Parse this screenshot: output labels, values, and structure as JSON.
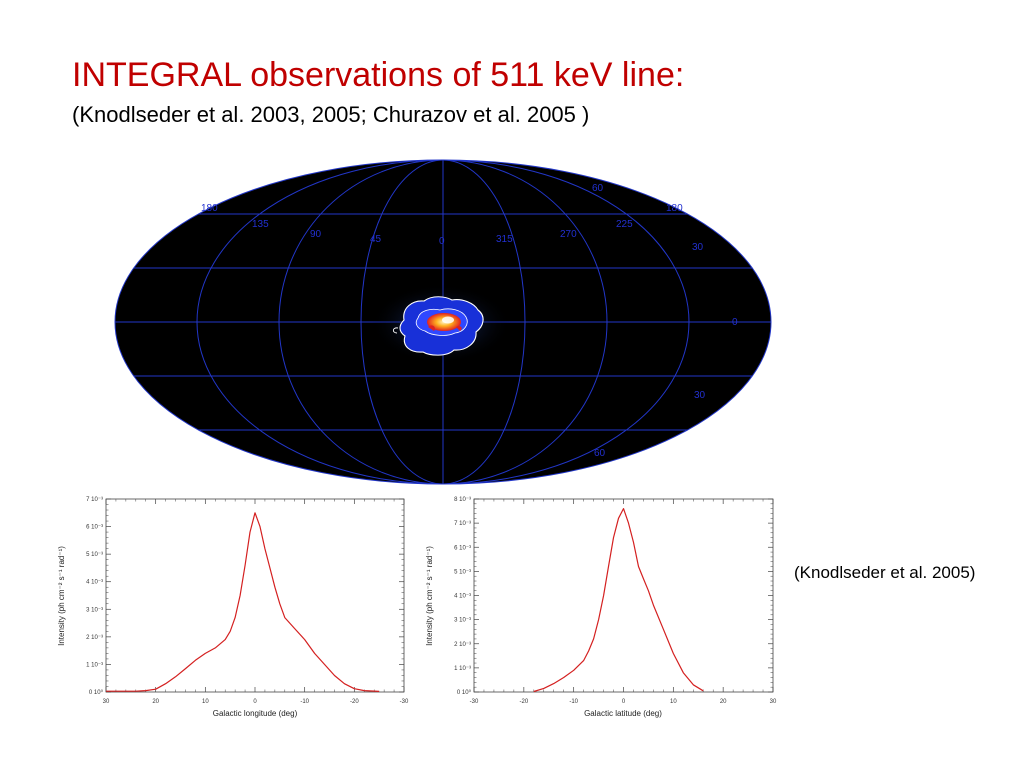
{
  "slide": {
    "title": "INTEGRAL observations of 511 keV line:",
    "subtitle": "(Knodlseder et al. 2003, 2005; Churazov et al. 2005 )",
    "caption": "(Knodlseder et al. 2005)"
  },
  "sky_map": {
    "longitude_labels": [
      "180",
      "135",
      "90",
      "45",
      "0",
      "315",
      "270",
      "225",
      "180"
    ],
    "latitude_labels": [
      "60",
      "30",
      "0",
      "30",
      "60"
    ],
    "colors": {
      "background": "#000000",
      "grid": "#2236c8",
      "labels": "#2230d0"
    }
  },
  "chart_data": [
    {
      "type": "line",
      "xlabel": "Galactic longitude (deg)",
      "ylabel": "Intensity (ph cm⁻² s⁻¹ rad⁻¹)",
      "xlim": [
        30,
        -30
      ],
      "ylim": [
        0,
        0.007
      ],
      "x_ticks": [
        "30",
        "20",
        "10",
        "0",
        "-10",
        "-20",
        "-30"
      ],
      "y_ticks": [
        "0 10⁰",
        "1 10⁻³",
        "2 10⁻³",
        "3 10⁻³",
        "4 10⁻³",
        "5 10⁻³",
        "6 10⁻³",
        "7 10⁻³"
      ],
      "series": [
        {
          "color": "#d42020",
          "x": [
            30,
            24,
            22,
            20,
            18,
            16,
            14,
            12,
            10,
            8,
            6,
            5,
            4,
            3,
            2,
            1,
            0,
            -1,
            -2,
            -3,
            -4,
            -5,
            -6,
            -8,
            -10,
            -12,
            -14,
            -16,
            -18,
            -20,
            -22,
            -25
          ],
          "y": [
            3e-05,
            3e-05,
            5e-05,
            0.0001,
            0.0003,
            0.00055,
            0.00085,
            0.00115,
            0.0014,
            0.0016,
            0.0019,
            0.0022,
            0.0027,
            0.0035,
            0.0046,
            0.0058,
            0.0065,
            0.006,
            0.0052,
            0.0045,
            0.0038,
            0.0032,
            0.0027,
            0.0023,
            0.0019,
            0.0014,
            0.001,
            0.0006,
            0.0003,
            0.00012,
            5e-05,
            2e-05
          ]
        }
      ]
    },
    {
      "type": "line",
      "xlabel": "Galactic latitude (deg)",
      "ylabel": "Intensity (ph cm⁻² s⁻¹ rad⁻¹)",
      "xlim": [
        -30,
        30
      ],
      "ylim": [
        0,
        0.008
      ],
      "x_ticks": [
        "-30",
        "-20",
        "-10",
        "0",
        "10",
        "20",
        "30"
      ],
      "y_ticks": [
        "0 10⁰",
        "1 10⁻³",
        "2 10⁻³",
        "3 10⁻³",
        "4 10⁻³",
        "5 10⁻³",
        "6 10⁻³",
        "7 10⁻³",
        "8 10⁻³"
      ],
      "series": [
        {
          "color": "#d42020",
          "x": [
            -18,
            -16,
            -14,
            -12,
            -10,
            -8,
            -7,
            -6,
            -5,
            -4,
            -3,
            -2,
            -1,
            0,
            1,
            2,
            3,
            4,
            5,
            6,
            8,
            10,
            12,
            14,
            16
          ],
          "y": [
            2e-05,
            0.00015,
            0.00035,
            0.0006,
            0.0009,
            0.0013,
            0.0017,
            0.0022,
            0.003,
            0.004,
            0.0052,
            0.0064,
            0.0072,
            0.0076,
            0.007,
            0.0062,
            0.0052,
            0.0047,
            0.0042,
            0.0036,
            0.0026,
            0.0016,
            0.0008,
            0.0003,
            5e-05
          ]
        }
      ]
    }
  ]
}
